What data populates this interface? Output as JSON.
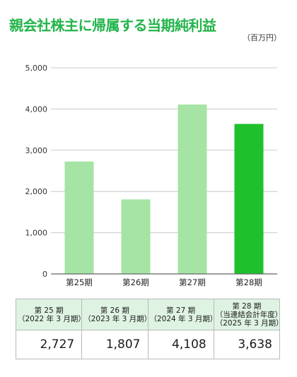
{
  "title": "親会社株主に帰属する当期純利益",
  "unit": "（百万円）",
  "chart_data": {
    "type": "bar",
    "categories": [
      "第25期",
      "第26期",
      "第27期",
      "第28期"
    ],
    "values": [
      2727,
      1807,
      4108,
      3638
    ],
    "ylim": [
      0,
      5000
    ],
    "yticks": [
      "0",
      "1,000",
      "2,000",
      "3,000",
      "4,000",
      "5,000"
    ],
    "grid": true,
    "bar_colors": [
      "#a5e4a4",
      "#a5e4a4",
      "#a5e4a4",
      "#1ec12c"
    ],
    "gridline_color": "#c8c8c8"
  },
  "table": {
    "headers": [
      {
        "line1": "第 25 期",
        "line2": "（2022 年 3 月期）"
      },
      {
        "line1": "第 26 期",
        "line2": "（2023 年 3 月期）"
      },
      {
        "line1": "第 27 期",
        "line2": "（2024 年 3 月期）"
      },
      {
        "line1": "第 28 期",
        "line2": "（当連結会計年度）",
        "line3": "（2025 年 3 月期）"
      }
    ],
    "values": [
      "2,727",
      "1,807",
      "4,108",
      "3,638"
    ]
  }
}
